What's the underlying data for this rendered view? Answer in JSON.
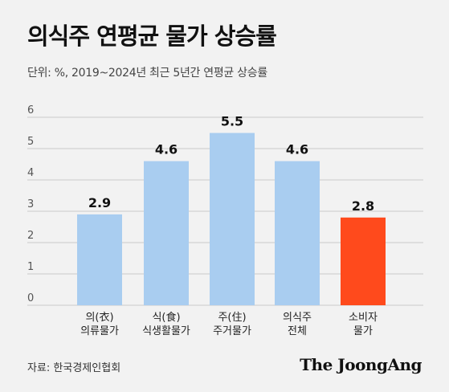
{
  "chart_data": {
    "type": "bar",
    "title": "의식주 연평균 물가 상승률",
    "subtitle": "단위: %, 2019~2024년 최근 5년간 연평균 상승률",
    "categories": [
      [
        "의(衣)",
        "의류물가"
      ],
      [
        "식(食)",
        "식생활물가"
      ],
      [
        "주(住)",
        "주거물가"
      ],
      [
        "의식주",
        "전체"
      ],
      [
        "소비자",
        "물가"
      ]
    ],
    "values": [
      2.9,
      4.6,
      5.5,
      4.6,
      2.8
    ],
    "value_labels": [
      "2.9",
      "4.6",
      "5.5",
      "4.6",
      "2.8"
    ],
    "colors": [
      "#a9cdf0",
      "#a9cdf0",
      "#a9cdf0",
      "#a9cdf0",
      "#ff4a1c"
    ],
    "ylim": [
      0,
      6
    ],
    "yticks": [
      0,
      1,
      2,
      3,
      4,
      5,
      6
    ],
    "grid": true,
    "source": "자료: 한국경제인협회"
  },
  "brand": "The JoongAng"
}
